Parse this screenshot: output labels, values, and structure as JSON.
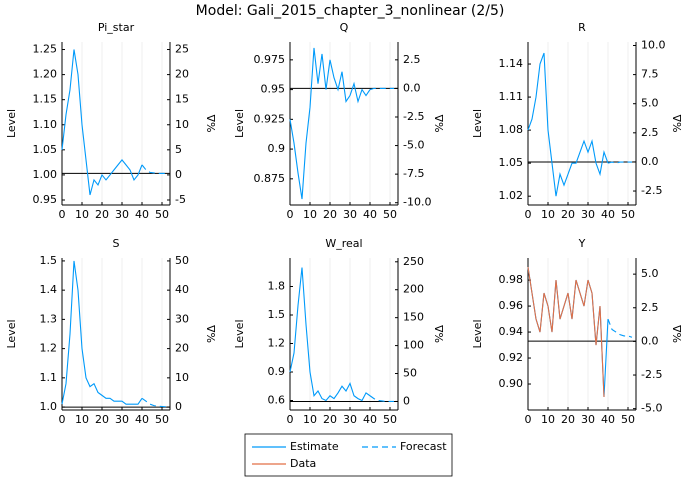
{
  "title": "Model: Gali_2015_chapter_3_nonlinear  (2/5)",
  "chart_data": [
    {
      "type": "line",
      "title": "Pi_star",
      "ylabel": "Level",
      "y2label": "%Δ",
      "grid": "x",
      "xlim": [
        0,
        54
      ],
      "xticks": [
        0,
        10,
        20,
        30,
        40,
        50
      ],
      "ylim": [
        0.94,
        1.265
      ],
      "yticks": [
        {
          "value": 0.95,
          "label": "0.95"
        },
        {
          "value": 1.0,
          "label": "1.00"
        },
        {
          "value": 1.05,
          "label": "1.05"
        },
        {
          "value": 1.1,
          "label": "1.10"
        },
        {
          "value": 1.15,
          "label": "1.15"
        },
        {
          "value": 1.2,
          "label": "1.20"
        },
        {
          "value": 1.25,
          "label": "1.25"
        }
      ],
      "y2lim": [
        -6,
        26.5
      ],
      "y2ticks": [
        -5,
        0,
        5,
        10,
        15,
        20,
        25
      ],
      "hline": 1.003,
      "x": [
        0,
        2,
        4,
        6,
        8,
        10,
        12,
        14,
        16,
        18,
        20,
        22,
        24,
        26,
        28,
        30,
        32,
        34,
        36,
        38,
        40
      ],
      "series": [
        {
          "name": "Estimate",
          "color": "#009afa",
          "values": [
            1.05,
            1.12,
            1.17,
            1.25,
            1.2,
            1.1,
            1.03,
            0.96,
            0.99,
            0.98,
            1.0,
            0.99,
            1.0,
            1.01,
            1.02,
            1.03,
            1.02,
            1.01,
            0.99,
            1.0,
            1.02
          ]
        },
        {
          "name": "Forecast",
          "color": "#009afa",
          "dash": true,
          "x": [
            40,
            42,
            44,
            46,
            48,
            50,
            52
          ],
          "values": [
            1.02,
            1.01,
            1.005,
            1.004,
            1.003,
            1.003,
            1.003
          ]
        }
      ]
    },
    {
      "type": "line",
      "title": "Q",
      "ylabel": "Level",
      "y2label": "%Δ",
      "grid": "x",
      "xlim": [
        0,
        54
      ],
      "xticks": [
        0,
        10,
        20,
        30,
        40,
        50
      ],
      "ylim": [
        0.853,
        0.99
      ],
      "yticks": [
        0.875,
        0.9,
        0.925,
        0.95,
        0.975
      ],
      "y2lim": [
        -10.2,
        4.06
      ],
      "y2ticks": [
        {
          "value": -10,
          "label": "-10.0"
        },
        {
          "value": -7.5,
          "label": "-7.5"
        },
        {
          "value": -5,
          "label": "-5.0"
        },
        {
          "value": -2.5,
          "label": "-2.5"
        },
        {
          "value": 0,
          "label": "0.0"
        },
        {
          "value": 2.5,
          "label": "2.5"
        }
      ],
      "hline": 0.951,
      "x": [
        0,
        2,
        4,
        6,
        8,
        10,
        12,
        14,
        16,
        18,
        20,
        22,
        24,
        26,
        28,
        30,
        32,
        34,
        36,
        38,
        40
      ],
      "series": [
        {
          "name": "Estimate",
          "color": "#009afa",
          "values": [
            0.925,
            0.905,
            0.88,
            0.858,
            0.905,
            0.935,
            0.985,
            0.955,
            0.98,
            0.95,
            0.975,
            0.96,
            0.95,
            0.965,
            0.94,
            0.945,
            0.955,
            0.94,
            0.95,
            0.945,
            0.95
          ]
        },
        {
          "name": "Forecast",
          "color": "#009afa",
          "dash": true,
          "x": [
            40,
            42,
            44,
            46,
            48,
            50,
            52
          ],
          "values": [
            0.95,
            0.951,
            0.951,
            0.951,
            0.951,
            0.951,
            0.951
          ]
        }
      ]
    },
    {
      "type": "line",
      "title": "R",
      "ylabel": "Level",
      "y2label": "%Δ",
      "grid": "x",
      "xlim": [
        0,
        54
      ],
      "xticks": [
        0,
        10,
        20,
        30,
        40,
        50
      ],
      "ylim": [
        1.012,
        1.16
      ],
      "yticks": [
        1.02,
        1.05,
        1.08,
        1.11,
        1.14
      ],
      "y2lim": [
        -3.7,
        10.3
      ],
      "y2ticks": [
        {
          "value": -2.5,
          "label": "-2.5"
        },
        {
          "value": 0,
          "label": "0.0"
        },
        {
          "value": 2.5,
          "label": "2.5"
        },
        {
          "value": 5,
          "label": "5.0"
        },
        {
          "value": 7.5,
          "label": "7.5"
        },
        {
          "value": 10,
          "label": "10.0"
        }
      ],
      "hline": 1.051,
      "x": [
        0,
        2,
        4,
        6,
        8,
        10,
        12,
        14,
        16,
        18,
        20,
        22,
        24,
        26,
        28,
        30,
        32,
        34,
        36,
        38,
        40
      ],
      "series": [
        {
          "name": "Estimate",
          "color": "#009afa",
          "values": [
            1.08,
            1.09,
            1.11,
            1.14,
            1.15,
            1.08,
            1.05,
            1.02,
            1.04,
            1.03,
            1.04,
            1.05,
            1.05,
            1.06,
            1.07,
            1.06,
            1.07,
            1.05,
            1.04,
            1.06,
            1.05
          ]
        },
        {
          "name": "Forecast",
          "color": "#009afa",
          "dash": true,
          "x": [
            40,
            42,
            44,
            46,
            48,
            50,
            52
          ],
          "values": [
            1.05,
            1.051,
            1.05,
            1.051,
            1.051,
            1.051,
            1.051
          ]
        }
      ]
    },
    {
      "type": "line",
      "title": "S",
      "ylabel": "Level",
      "y2label": "%Δ",
      "grid": "x",
      "xlim": [
        0,
        54
      ],
      "xticks": [
        0,
        10,
        20,
        30,
        40,
        50
      ],
      "ylim": [
        0.99,
        1.51
      ],
      "yticks": [
        {
          "value": 1.0,
          "label": "1.0"
        },
        1.1,
        1.2,
        1.3,
        1.4,
        1.5
      ],
      "y2lim": [
        -1,
        51
      ],
      "y2ticks": [
        0,
        10,
        20,
        30,
        40,
        50
      ],
      "hline": 1.0,
      "x": [
        0,
        2,
        4,
        6,
        8,
        10,
        12,
        14,
        16,
        18,
        20,
        22,
        24,
        26,
        28,
        30,
        32,
        34,
        36,
        38,
        40
      ],
      "series": [
        {
          "name": "Estimate",
          "color": "#009afa",
          "values": [
            1.01,
            1.08,
            1.25,
            1.5,
            1.4,
            1.2,
            1.1,
            1.07,
            1.08,
            1.05,
            1.04,
            1.03,
            1.03,
            1.02,
            1.02,
            1.02,
            1.01,
            1.01,
            1.01,
            1.01,
            1.03
          ]
        },
        {
          "name": "Forecast",
          "color": "#009afa",
          "dash": true,
          "x": [
            40,
            42,
            44,
            46,
            48,
            50,
            52
          ],
          "values": [
            1.03,
            1.02,
            1.01,
            1.005,
            1.003,
            1.002,
            1.001
          ]
        }
      ]
    },
    {
      "type": "line",
      "title": "W_real",
      "ylabel": "Level",
      "y2label": "%Δ",
      "grid": "x",
      "xlim": [
        0,
        54
      ],
      "xticks": [
        0,
        10,
        20,
        30,
        40,
        50
      ],
      "ylim": [
        0.5,
        2.1
      ],
      "yticks": [
        0.6,
        0.9,
        1.2,
        1.5,
        1.8
      ],
      "y2lim": [
        -15.3,
        256.8
      ],
      "y2ticks": [
        0,
        50,
        100,
        150,
        200,
        250
      ],
      "hline": 0.59,
      "x": [
        0,
        2,
        4,
        6,
        8,
        10,
        12,
        14,
        16,
        18,
        20,
        22,
        24,
        26,
        28,
        30,
        32,
        34,
        36,
        38,
        40
      ],
      "series": [
        {
          "name": "Estimate",
          "color": "#009afa",
          "values": [
            0.9,
            1.1,
            1.6,
            2.0,
            1.4,
            0.9,
            0.65,
            0.7,
            0.62,
            0.6,
            0.65,
            0.62,
            0.68,
            0.75,
            0.7,
            0.78,
            0.65,
            0.62,
            0.6,
            0.68,
            0.65
          ]
        },
        {
          "name": "Forecast",
          "color": "#009afa",
          "dash": true,
          "x": [
            40,
            42,
            44,
            46,
            48,
            50,
            52
          ],
          "values": [
            0.65,
            0.62,
            0.6,
            0.595,
            0.59,
            0.59,
            0.59
          ]
        }
      ]
    },
    {
      "type": "line",
      "title": "Y",
      "ylabel": "Level",
      "y2label": "%Δ",
      "grid": "x",
      "xlim": [
        0,
        54
      ],
      "xticks": [
        0,
        10,
        20,
        30,
        40,
        50
      ],
      "ylim": [
        0.88,
        0.997
      ],
      "yticks": [
        {
          "value": 0.9,
          "label": "0.90"
        },
        0.92,
        0.94,
        0.96,
        0.98
      ],
      "y2lim": [
        -5.1,
        6.2
      ],
      "y2ticks": [
        {
          "value": -5,
          "label": "-5.0"
        },
        {
          "value": -2.5,
          "label": "-2.5"
        },
        {
          "value": 0,
          "label": "0.0"
        },
        {
          "value": 2.5,
          "label": "2.5"
        },
        {
          "value": 5,
          "label": "5.0"
        }
      ],
      "hline": 0.933,
      "x": [
        0,
        2,
        4,
        6,
        8,
        10,
        12,
        14,
        16,
        18,
        20,
        22,
        24,
        26,
        28,
        30,
        32,
        34,
        36,
        38,
        40
      ],
      "series": [
        {
          "name": "Estimate",
          "color": "#009afa",
          "values": [
            0.99,
            0.97,
            0.95,
            0.94,
            0.97,
            0.96,
            0.94,
            0.98,
            0.95,
            0.96,
            0.97,
            0.95,
            0.98,
            0.97,
            0.96,
            0.98,
            0.97,
            0.93,
            0.96,
            0.89,
            0.95
          ]
        },
        {
          "name": "Forecast",
          "color": "#009afa",
          "dash": true,
          "x": [
            40,
            42,
            44,
            46,
            48,
            50,
            52
          ],
          "values": [
            0.95,
            0.942,
            0.94,
            0.938,
            0.937,
            0.937,
            0.936
          ]
        },
        {
          "name": "Data",
          "color": "#e26f46",
          "x": [
            0,
            2,
            4,
            6,
            8,
            10,
            12,
            14,
            16,
            18,
            20,
            22,
            24,
            26,
            28,
            30,
            32,
            34,
            36,
            38
          ],
          "values": [
            0.99,
            0.97,
            0.95,
            0.94,
            0.97,
            0.96,
            0.94,
            0.98,
            0.95,
            0.96,
            0.97,
            0.95,
            0.98,
            0.97,
            0.96,
            0.98,
            0.97,
            0.93,
            0.96,
            0.89
          ]
        }
      ]
    }
  ]
}
